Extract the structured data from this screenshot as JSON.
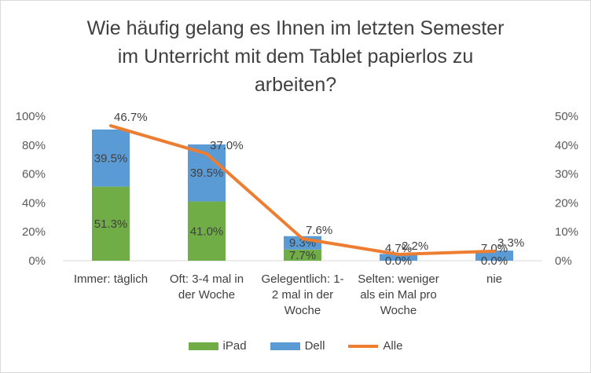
{
  "chart_data": {
    "type": "bar",
    "stacked": true,
    "title_lines": [
      "Wie häufig gelang es Ihnen im letzten Semester",
      "im Unterricht mit dem Tablet papierlos zu",
      "arbeiten?"
    ],
    "categories": [
      [
        "Immer: täglich"
      ],
      [
        "Oft: 3-4 mal in",
        "der Woche"
      ],
      [
        "Gelegentlich: 1-",
        "2 mal in der",
        "Woche"
      ],
      [
        "Selten: weniger",
        "als ein Mal pro",
        "Woche"
      ],
      [
        "nie"
      ]
    ],
    "series": [
      {
        "name": "iPad",
        "axis": "left",
        "color": "#70ad47",
        "values": [
          51.3,
          41.0,
          7.7,
          0.0,
          0.0
        ],
        "labels": [
          "51.3%",
          "41.0%",
          "7.7%",
          "0.0%",
          "0.0%"
        ]
      },
      {
        "name": "Dell",
        "axis": "left",
        "color": "#5b9bd5",
        "values": [
          39.5,
          39.5,
          9.3,
          4.7,
          7.0
        ],
        "labels": [
          "39.5%",
          "39.5%",
          "9.3%",
          "4.7%",
          "7.0%"
        ]
      },
      {
        "name": "Alle",
        "axis": "right",
        "type": "line",
        "color": "#ed7d31",
        "values": [
          46.7,
          37.0,
          7.6,
          2.2,
          3.3
        ],
        "labels": [
          "46.7%",
          "37.0%",
          "7.6%",
          "2.2%",
          "3.3%"
        ]
      }
    ],
    "left_axis": {
      "min": 0,
      "max": 100,
      "ticks": [
        "0%",
        "20%",
        "40%",
        "60%",
        "80%",
        "100%"
      ]
    },
    "right_axis": {
      "min": 0,
      "max": 50,
      "ticks": [
        "0%",
        "10%",
        "20%",
        "30%",
        "40%",
        "50%"
      ]
    },
    "legend_position": "bottom",
    "grid": false
  }
}
